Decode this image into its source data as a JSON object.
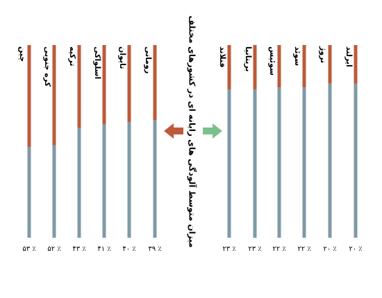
{
  "chart_data": {
    "type": "bar",
    "title": "میزان متوسط آلودگی های رایانه ای در کشورهای مختلف",
    "value_unit": "٪",
    "colors": {
      "clean": "#7f99a6",
      "infected": "#bd5a3a",
      "left_arrow": "#bd5a3a",
      "right_arrow": "#7cbf8e"
    },
    "ylim": [
      0,
      100
    ],
    "groups": [
      {
        "name": "high",
        "categories": [
          "چین",
          "کره جنوبی",
          "ترکیه",
          "اسلواکی",
          "تایوان",
          "رومانی"
        ],
        "values": [
          53,
          52,
          43,
          41,
          40,
          39
        ],
        "value_labels": [
          "٪ ۵۳",
          "٪ ۵۲",
          "٪ ۴۳",
          "٪ ۴۱",
          "٪ ۴۰",
          "٪ ۳۹"
        ]
      },
      {
        "name": "low",
        "categories": [
          "فنلاند",
          "بریتانیا",
          "سوئیس",
          "سوئد",
          "نروژ",
          "ایرلند"
        ],
        "values": [
          23,
          23,
          22,
          22,
          20,
          20
        ],
        "value_labels": [
          "٪ ۲۳",
          "٪ ۲۳",
          "٪ ۲۲",
          "٪ ۲۲",
          "٪ ۲۰",
          "٪ ۲۰"
        ]
      }
    ]
  }
}
